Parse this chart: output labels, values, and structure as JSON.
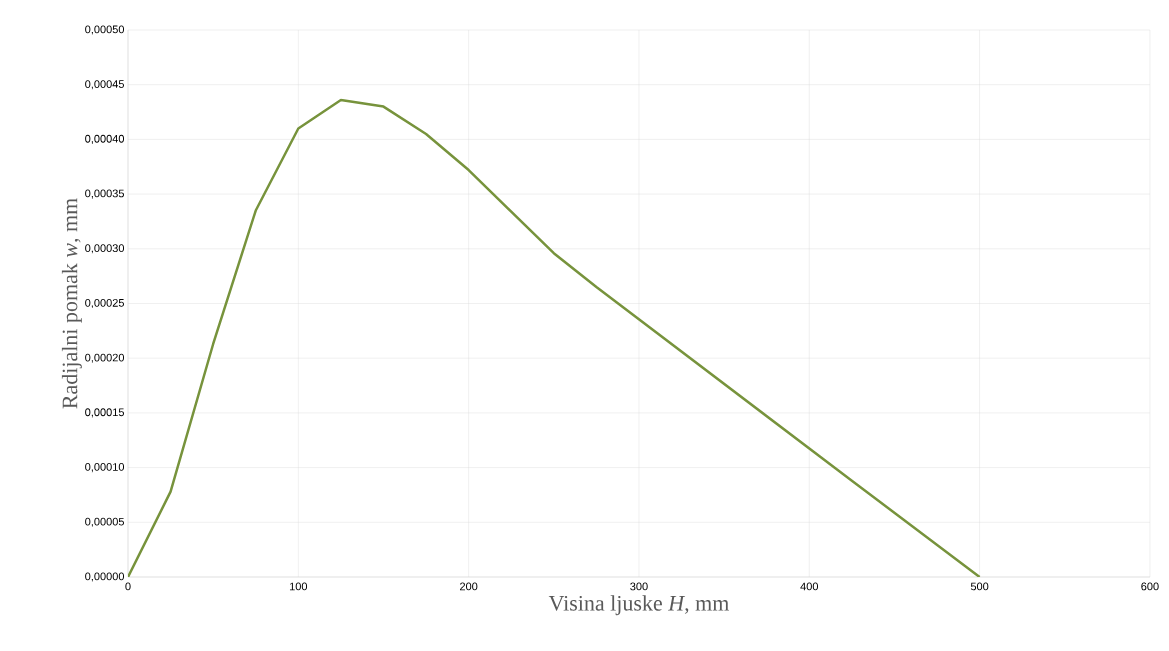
{
  "chart_data": {
    "type": "line",
    "xlabel": "Visina ljuske *H*, mm",
    "ylabel": "Radijalni pomak *w*, mm",
    "x": [
      0,
      25,
      50,
      75,
      100,
      125,
      150,
      175,
      200,
      250,
      275,
      425,
      500
    ],
    "series": [
      {
        "color": "#77933c",
        "values": [
          0,
          7.8e-05,
          0.000213,
          0.000335,
          0.00041,
          0.000436,
          0.00043,
          0.000405,
          0.000372,
          0.000296,
          0.000265,
          8.8e-05,
          0
        ]
      }
    ],
    "xlim": [
      0,
      600
    ],
    "xticks": [
      0,
      100,
      200,
      300,
      400,
      500,
      600
    ],
    "ylim": [
      0,
      0.0005
    ],
    "yticks": [
      {
        "value": 0,
        "label": "0,00000"
      },
      {
        "value": 5e-05,
        "label": "0,00005"
      },
      {
        "value": 0.0001,
        "label": "0,00010"
      },
      {
        "value": 0.00015,
        "label": "0,00015"
      },
      {
        "value": 0.0002,
        "label": "0,00020"
      },
      {
        "value": 0.00025,
        "label": "0,00025"
      },
      {
        "value": 0.0003,
        "label": "0,00030"
      },
      {
        "value": 0.00035,
        "label": "0,00035"
      },
      {
        "value": 0.0004,
        "label": "0,00040"
      },
      {
        "value": 0.00045,
        "label": "0,00045"
      },
      {
        "value": 0.0005,
        "label": "0,00050"
      }
    ],
    "grid": true,
    "marker": "none",
    "line_style": "solid"
  }
}
